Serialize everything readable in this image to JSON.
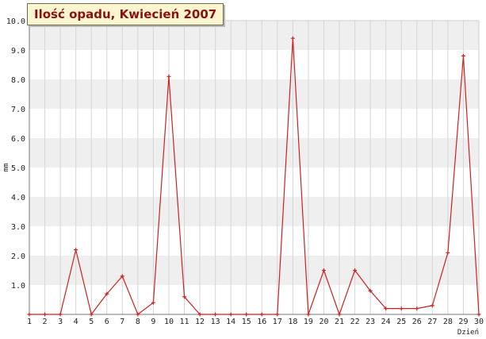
{
  "chart_data": {
    "type": "line",
    "title": "Ilość opadu, Kwiecień 2007",
    "xlabel": "Dzień",
    "ylabel": "mm",
    "x": [
      1,
      2,
      3,
      4,
      5,
      6,
      7,
      8,
      9,
      10,
      11,
      12,
      13,
      14,
      15,
      16,
      17,
      18,
      19,
      20,
      21,
      22,
      23,
      24,
      25,
      26,
      27,
      28,
      29,
      30
    ],
    "values": [
      0,
      0,
      0,
      2.2,
      0,
      0.7,
      1.3,
      0,
      0.4,
      8.1,
      0.6,
      0,
      0,
      0,
      0,
      0,
      0,
      9.4,
      0,
      1.5,
      0,
      1.5,
      0.8,
      0.2,
      0.2,
      0.2,
      0.3,
      2.1,
      8.8,
      0
    ],
    "xlim": [
      1,
      30
    ],
    "ylim": [
      0,
      10
    ],
    "y_ticks": [
      1.0,
      2.0,
      3.0,
      4.0,
      5.0,
      6.0,
      7.0,
      8.0,
      9.0,
      10.0
    ],
    "y_tick_labels": [
      "1.0",
      "2.0",
      "3.0",
      "4.0",
      "5.0",
      "6.0",
      "7.0",
      "8.0",
      "9.0",
      "10.0"
    ],
    "grid": true,
    "colors": {
      "line": "#cc2222",
      "band": "#efefef",
      "grid": "#d6d6d6",
      "title_bg": "#fbf6cf",
      "title_text": "#8b1111"
    }
  }
}
